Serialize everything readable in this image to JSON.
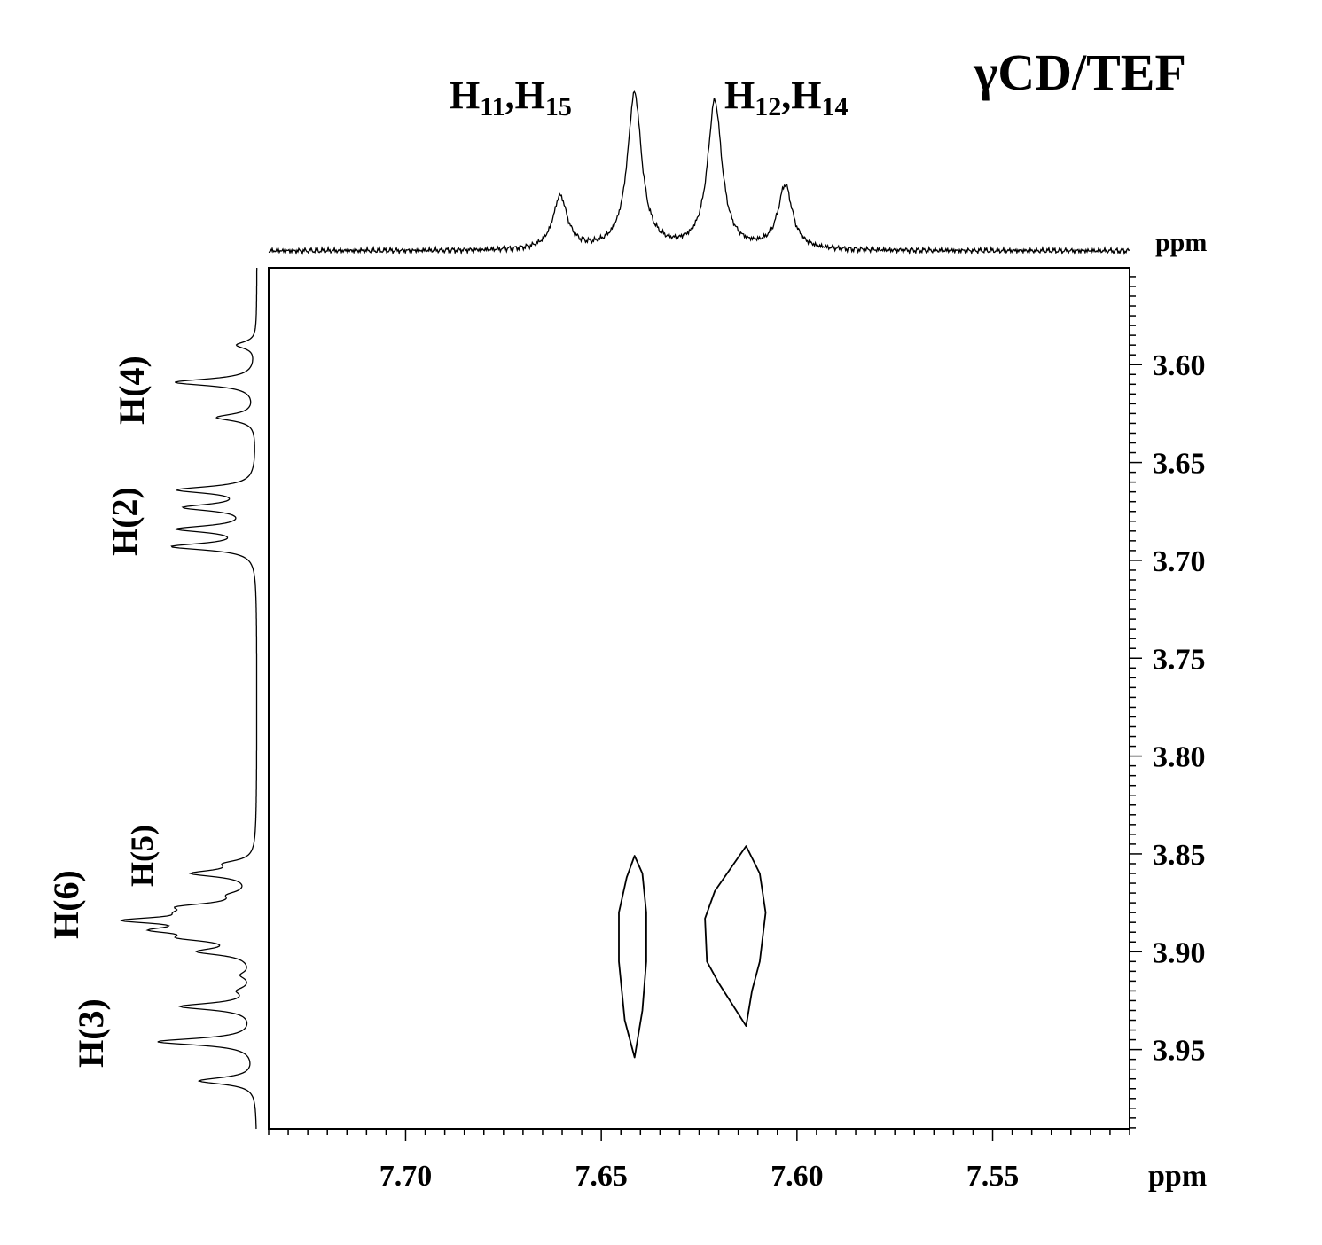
{
  "chart_data": {
    "type": "contour",
    "title": "γCD/TEF",
    "x_axis": {
      "label": "ppm",
      "range": [
        7.735,
        7.515
      ],
      "reversed": true,
      "ticks": [
        7.7,
        7.65,
        7.6,
        7.55
      ],
      "tick_labels": [
        "7.70",
        "7.65",
        "7.60",
        "7.55"
      ]
    },
    "y_axis": {
      "label": "ppm",
      "range": [
        3.5505,
        3.9905
      ],
      "reversed": true,
      "position": "right",
      "ticks": [
        3.6,
        3.65,
        3.7,
        3.75,
        3.8,
        3.85,
        3.9,
        3.95
      ],
      "tick_labels": [
        "3.60",
        "3.65",
        "3.70",
        "3.75",
        "3.80",
        "3.85",
        "3.90",
        "3.95"
      ]
    },
    "grid": false,
    "top_projection": {
      "peaks": [
        {
          "ppm": 7.6605,
          "intensity": 0.34
        },
        {
          "ppm": 7.6415,
          "intensity": 1.0
        },
        {
          "ppm": 7.621,
          "intensity": 0.95
        },
        {
          "ppm": 7.603,
          "intensity": 0.41
        }
      ],
      "labels": [
        {
          "main": "H",
          "sub1": "11",
          "sep": ",H",
          "sub2": "15"
        },
        {
          "main": "H",
          "sub1": "12",
          "sep": ",H",
          "sub2": "14"
        }
      ]
    },
    "left_projection": {
      "peaks": [
        {
          "ppm": 3.59,
          "intensity": 0.18
        },
        {
          "ppm": 3.609,
          "intensity": 0.75
        },
        {
          "ppm": 3.627,
          "intensity": 0.36
        },
        {
          "ppm": 3.664,
          "intensity": 0.7
        },
        {
          "ppm": 3.673,
          "intensity": 0.62
        },
        {
          "ppm": 3.684,
          "intensity": 0.68
        },
        {
          "ppm": 3.693,
          "intensity": 0.75
        },
        {
          "ppm": 3.855,
          "intensity": 0.22
        },
        {
          "ppm": 3.86,
          "intensity": 0.55
        },
        {
          "ppm": 3.871,
          "intensity": 0.15
        },
        {
          "ppm": 3.877,
          "intensity": 0.5
        },
        {
          "ppm": 3.88,
          "intensity": 0.33
        },
        {
          "ppm": 3.884,
          "intensity": 1.0
        },
        {
          "ppm": 3.889,
          "intensity": 0.7
        },
        {
          "ppm": 3.893,
          "intensity": 0.48
        },
        {
          "ppm": 3.9,
          "intensity": 0.46
        },
        {
          "ppm": 3.912,
          "intensity": 0.1
        },
        {
          "ppm": 3.92,
          "intensity": 0.12
        },
        {
          "ppm": 3.928,
          "intensity": 0.68
        },
        {
          "ppm": 3.946,
          "intensity": 0.9
        },
        {
          "ppm": 3.966,
          "intensity": 0.52
        }
      ],
      "labels": [
        "H(4)",
        "H(2)",
        "H(5)",
        "H(6)",
        "H(3)"
      ]
    },
    "contours": [
      {
        "name": "",
        "points": [
          [
            7.6415,
            3.851
          ],
          [
            7.6395,
            3.86
          ],
          [
            7.6385,
            3.88
          ],
          [
            7.6385,
            3.905
          ],
          [
            7.6395,
            3.93
          ],
          [
            7.6415,
            3.954
          ],
          [
            7.644,
            3.935
          ],
          [
            7.6455,
            3.905
          ],
          [
            7.6455,
            3.88
          ],
          [
            7.6435,
            3.862
          ]
        ]
      },
      {
        "name": "",
        "points": [
          [
            7.613,
            3.846
          ],
          [
            7.6095,
            3.86
          ],
          [
            7.608,
            3.88
          ],
          [
            7.6095,
            3.905
          ],
          [
            7.6115,
            3.92
          ],
          [
            7.613,
            3.938
          ],
          [
            7.62,
            3.916
          ],
          [
            7.623,
            3.905
          ],
          [
            7.6235,
            3.883
          ],
          [
            7.621,
            3.869
          ]
        ]
      }
    ]
  }
}
